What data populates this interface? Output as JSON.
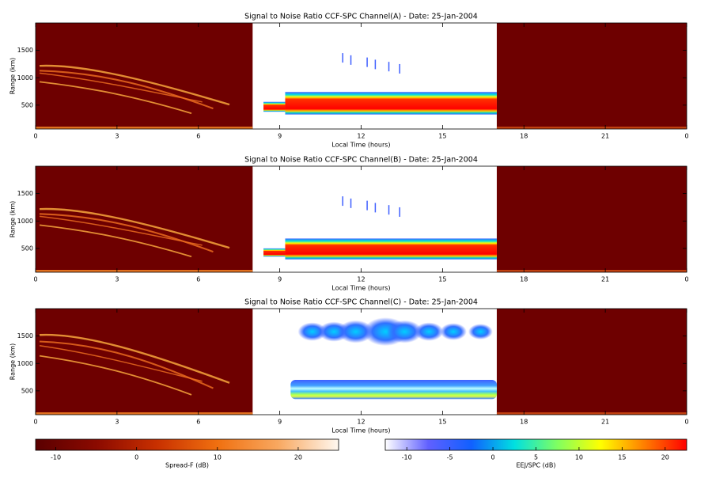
{
  "chart_data": [
    {
      "type": "heatmap",
      "title": "Signal to Noise Ratio CCF-SPC Channel(A) - Date: 25-Jan-2004",
      "xlabel": "Local Time (hours)",
      "ylabel": "Range (km)",
      "xlim": [
        0,
        24
      ],
      "xticks": [
        0,
        3,
        6,
        9,
        12,
        15,
        18,
        21,
        {
          "value": 24,
          "label": "0"
        }
      ],
      "ylim": [
        65,
        2000
      ],
      "yticks": [
        500,
        1000,
        1500
      ]
    },
    {
      "type": "heatmap",
      "title": "Signal to Noise Ratio CCF-SPC Channel(B) - Date: 25-Jan-2004",
      "xlabel": "Local Time (hours)",
      "ylabel": "Range (km)",
      "xlim": [
        0,
        24
      ],
      "xticks": [
        0,
        3,
        6,
        9,
        12,
        15,
        18,
        21,
        {
          "value": 24,
          "label": "0"
        }
      ],
      "ylim": [
        65,
        2000
      ],
      "yticks": [
        500,
        1000,
        1500
      ]
    },
    {
      "type": "heatmap",
      "title": "Signal to Noise Ratio CCF-SPC Channel(C) - Date: 25-Jan-2004",
      "xlabel": "Local Time (hours)",
      "ylabel": "Range (km)",
      "xlim": [
        0,
        24
      ],
      "xticks": [
        0,
        3,
        6,
        9,
        12,
        15,
        18,
        21,
        {
          "value": 24,
          "label": "0"
        }
      ],
      "ylim": [
        65,
        2000
      ],
      "yticks": [
        500,
        1000,
        1500
      ]
    },
    {
      "type": "colorbar",
      "label": "Spread-F (dB)",
      "xlim": [
        -12.5,
        25
      ],
      "xticks": [
        -10,
        0,
        10,
        20
      ],
      "colors": [
        "#5a0000",
        "#8b0a00",
        "#c83000",
        "#f07010",
        "#f8a860",
        "#fff8f0"
      ]
    },
    {
      "type": "colorbar",
      "label": "EEJ/SPC (dB)",
      "xlim": [
        -12.5,
        22.5
      ],
      "xticks": [
        -10,
        -5,
        0,
        5,
        10,
        15,
        20
      ],
      "colors": [
        "#ffffff",
        "#6060ff",
        "#1060ff",
        "#00e0e0",
        "#80ff60",
        "#ffff00",
        "#ff8000",
        "#ff0000"
      ]
    }
  ]
}
